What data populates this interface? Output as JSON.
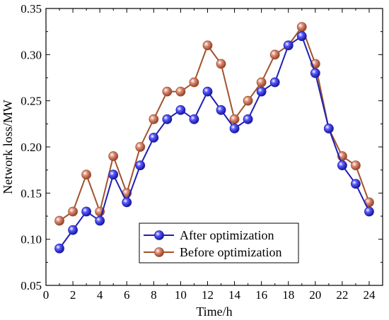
{
  "chart_data": {
    "type": "line",
    "title": "",
    "xlabel": "Time/h",
    "ylabel": "Network loss/MW",
    "xlim": [
      0,
      25
    ],
    "ylim": [
      0.05,
      0.35
    ],
    "xticks": [
      0,
      2,
      4,
      6,
      8,
      10,
      12,
      14,
      16,
      18,
      20,
      22,
      24
    ],
    "yticks": [
      0.05,
      0.1,
      0.15,
      0.2,
      0.25,
      0.3,
      0.35
    ],
    "ytick_labels": [
      "0.05",
      "0.10",
      "0.15",
      "0.20",
      "0.25",
      "0.30",
      "0.35"
    ],
    "grid": false,
    "legend_position": "bottom-center",
    "x": [
      1,
      2,
      3,
      4,
      5,
      6,
      7,
      8,
      9,
      10,
      11,
      12,
      13,
      14,
      15,
      16,
      17,
      18,
      19,
      20,
      21,
      22,
      23,
      24
    ],
    "series": [
      {
        "name": "After optimization",
        "color": "#1f1fb4",
        "marker_color": "#2a2ad0",
        "values": [
          0.09,
          0.11,
          0.13,
          0.12,
          0.17,
          0.14,
          0.18,
          0.21,
          0.23,
          0.24,
          0.23,
          0.26,
          0.24,
          0.22,
          0.23,
          0.26,
          0.27,
          0.31,
          0.32,
          0.28,
          0.22,
          0.18,
          0.16,
          0.13
        ]
      },
      {
        "name": "Before optimization",
        "color": "#a0522d",
        "marker_color": "#c0705a",
        "values": [
          0.12,
          0.13,
          0.17,
          0.13,
          0.19,
          0.15,
          0.2,
          0.23,
          0.26,
          0.26,
          0.27,
          0.31,
          0.29,
          0.23,
          0.25,
          0.27,
          0.3,
          0.31,
          0.33,
          0.29,
          0.22,
          0.19,
          0.18,
          0.14
        ]
      }
    ]
  }
}
